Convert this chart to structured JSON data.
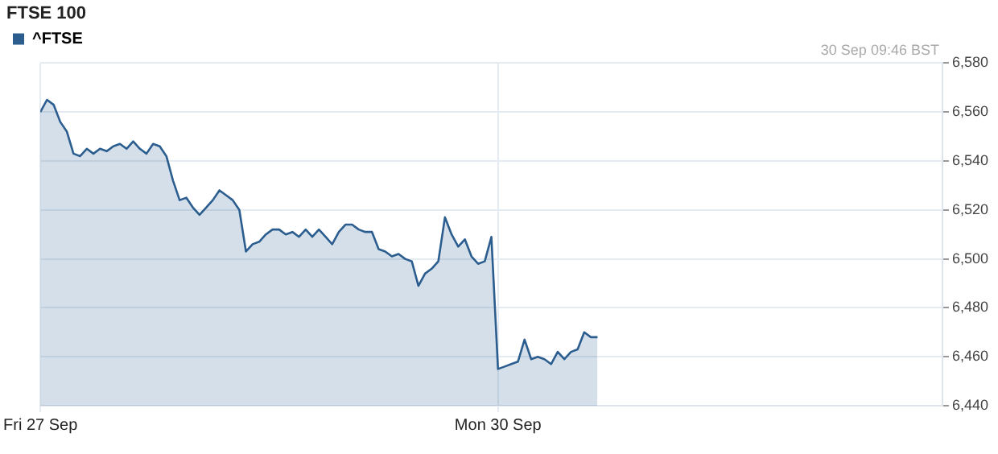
{
  "chart_data": {
    "type": "area",
    "title": "FTSE 100",
    "annotations": [
      "30 Sep 09:46 BST"
    ],
    "categories": [
      "Fri 27 Sep",
      null,
      null,
      null,
      null,
      null,
      null,
      null,
      null,
      null,
      null,
      null,
      null,
      null,
      null,
      null,
      null,
      null,
      null,
      null,
      null,
      null,
      null,
      null,
      null,
      null,
      null,
      null,
      null,
      null,
      null,
      null,
      null,
      null,
      null,
      null,
      null,
      null,
      null,
      null,
      null,
      null,
      null,
      null,
      null,
      null,
      null,
      null,
      null,
      null,
      null,
      null,
      null,
      null,
      null,
      null,
      null,
      null,
      null,
      null,
      null,
      null,
      null,
      null,
      null,
      null,
      null,
      null,
      null,
      "Mon 30 Sep",
      null,
      null,
      null,
      null,
      null,
      null,
      null,
      null,
      null,
      null,
      null,
      null,
      null,
      null,
      null,
      null,
      null,
      null,
      null,
      null,
      null,
      null,
      null,
      null,
      null,
      null,
      null,
      null,
      null,
      null,
      null,
      null,
      null,
      null,
      null,
      null,
      null,
      null,
      null,
      null,
      null,
      null,
      null,
      null,
      null,
      null,
      null,
      null,
      null,
      null,
      null,
      null,
      null,
      null,
      null,
      null,
      null,
      null,
      null,
      null,
      null,
      null,
      null,
      null,
      null,
      null,
      null
    ],
    "ylim": [
      6440,
      6580
    ],
    "yticks": [
      {
        "value": 6440,
        "label": "6,440"
      },
      {
        "value": 6460,
        "label": "6,460"
      },
      {
        "value": 6480,
        "label": "6,480"
      },
      {
        "value": 6500,
        "label": "6,500"
      },
      {
        "value": 6520,
        "label": "6,520"
      },
      {
        "value": 6540,
        "label": "6,540"
      },
      {
        "value": 6560,
        "label": "6,560"
      },
      {
        "value": 6580,
        "label": "6,580"
      }
    ],
    "grid": true,
    "legend": "top left",
    "marker": "none",
    "line_style": "solid",
    "series": [
      {
        "name": "^FTSE",
        "color": "#2b5d8f",
        "values": [
          6560,
          6565,
          6563,
          6556,
          6552,
          6543,
          6542,
          6545,
          6543,
          6545,
          6544,
          6546,
          6547,
          6545,
          6548,
          6545,
          6543,
          6547,
          6546,
          6542,
          6532,
          6524,
          6525,
          6521,
          6518,
          6521,
          6524,
          6528,
          6526,
          6524,
          6520,
          6503,
          6506,
          6507,
          6510,
          6512,
          6512,
          6510,
          6511,
          6509,
          6512,
          6509,
          6512,
          6509,
          6506,
          6511,
          6514,
          6514,
          6512,
          6511,
          6511,
          6504,
          6503,
          6501,
          6502,
          6500,
          6499,
          6489,
          6494,
          6496,
          6499,
          6517,
          6510,
          6505,
          6508,
          6501,
          6498,
          6499,
          6509,
          6455,
          6456,
          6457,
          6458,
          6467,
          6459,
          6460,
          6459,
          6457,
          6462,
          6459,
          6462,
          6463,
          6470,
          6468,
          6468,
          null,
          null,
          null,
          null,
          null,
          null,
          null,
          null,
          null,
          null,
          null,
          null,
          null,
          null,
          null,
          null,
          null,
          null,
          null,
          null,
          null,
          null,
          null,
          null,
          null,
          null,
          null,
          null,
          null,
          null,
          null,
          null,
          null,
          null,
          null,
          null,
          null,
          null,
          null,
          null,
          null,
          null,
          null,
          null,
          null,
          null,
          null,
          null,
          null,
          null,
          null,
          null
        ]
      }
    ]
  }
}
